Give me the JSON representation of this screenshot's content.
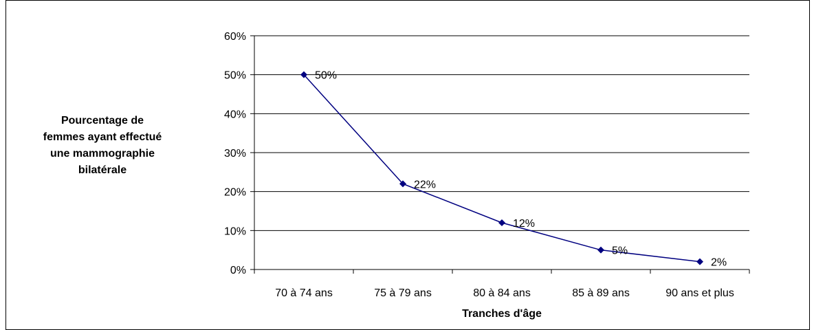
{
  "chart_data": {
    "type": "line",
    "categories": [
      "70 à 74 ans",
      "75 à 79 ans",
      "80 à 84 ans",
      "85 à 89 ans",
      "90 ans et plus"
    ],
    "series": [
      {
        "values": [
          50,
          22,
          12,
          5,
          2
        ],
        "labels": [
          "50%",
          "22%",
          "12%",
          "5%",
          "2%"
        ],
        "color": "#000080"
      }
    ],
    "xlabel": "Tranches d'âge",
    "ylabel": "Pourcentage de\nfemmes ayant effectué\nune mammographie\nbilatérale",
    "ylim": [
      0,
      60
    ],
    "yticks": [
      0,
      10,
      20,
      30,
      40,
      50,
      60
    ],
    "ytick_labels": [
      "0%",
      "10%",
      "20%",
      "30%",
      "40%",
      "50%",
      "60%"
    ],
    "grid": "horizontal",
    "legend": "none"
  }
}
